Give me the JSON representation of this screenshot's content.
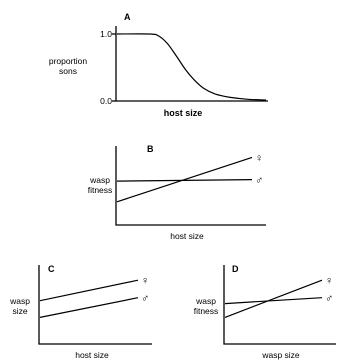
{
  "chart_data": [
    {
      "panel_label": "A",
      "type": "line",
      "xlabel": "host size",
      "ylabel_lines": [
        "proportion",
        "sons"
      ],
      "yticks": [
        "1.0",
        "0.0"
      ],
      "ylim": [
        0,
        1.0
      ],
      "xlim": [
        0,
        1
      ],
      "series": [
        {
          "x": [
            0,
            0.22,
            0.28,
            0.34,
            0.4,
            0.46,
            0.52,
            0.58,
            0.66,
            0.76,
            0.88,
            1.0
          ],
          "y": [
            1.0,
            1.0,
            0.97,
            0.85,
            0.66,
            0.46,
            0.3,
            0.18,
            0.09,
            0.04,
            0.01,
            0.0
          ]
        }
      ]
    },
    {
      "panel_label": "B",
      "type": "line",
      "xlabel": "host size",
      "ylabel_lines": [
        "wasp",
        "fitness"
      ],
      "xlim": [
        0,
        1
      ],
      "ylim": [
        0,
        1
      ],
      "series": [
        {
          "name": "♀",
          "x": [
            0,
            1
          ],
          "y": [
            0.3,
            0.9
          ]
        },
        {
          "name": "♂",
          "x": [
            0,
            1
          ],
          "y": [
            0.58,
            0.6
          ]
        }
      ]
    },
    {
      "panel_label": "C",
      "type": "line",
      "xlabel": "host size",
      "ylabel_lines": [
        "wasp",
        "size"
      ],
      "xlim": [
        0,
        1
      ],
      "ylim": [
        0,
        1
      ],
      "series": [
        {
          "name": "♀",
          "x": [
            0,
            1
          ],
          "y": [
            0.58,
            0.86
          ]
        },
        {
          "name": "♂",
          "x": [
            0,
            1
          ],
          "y": [
            0.35,
            0.62
          ]
        }
      ]
    },
    {
      "panel_label": "D",
      "type": "line",
      "xlabel": "wasp size",
      "ylabel_lines": [
        "wasp",
        "fitness"
      ],
      "xlim": [
        0,
        1
      ],
      "ylim": [
        0,
        1
      ],
      "series": [
        {
          "name": "♀",
          "x": [
            0,
            1
          ],
          "y": [
            0.35,
            0.86
          ]
        },
        {
          "name": "♂",
          "x": [
            0,
            1
          ],
          "y": [
            0.54,
            0.62
          ]
        }
      ]
    }
  ]
}
